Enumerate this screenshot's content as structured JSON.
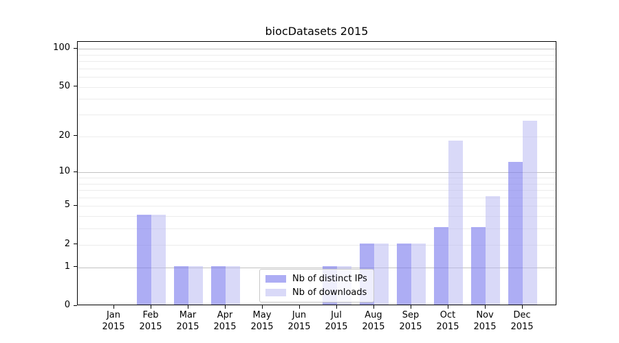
{
  "chart_data": {
    "type": "bar",
    "title": "biocDatasets 2015",
    "categories": [
      "Jan",
      "Feb",
      "Mar",
      "Apr",
      "May",
      "Jun",
      "Jul",
      "Aug",
      "Sep",
      "Oct",
      "Nov",
      "Dec"
    ],
    "category_year": "2015",
    "series": [
      {
        "name": "Nb of distinct IPs",
        "values": [
          0,
          4,
          1,
          1,
          0,
          0,
          1,
          2,
          2,
          3,
          3,
          12
        ],
        "fill": "rgba(122, 122, 238, 0.62)",
        "color_hex": "#acacf4"
      },
      {
        "name": "Nb of downloads",
        "values": [
          0,
          4,
          1,
          1,
          0,
          0,
          1,
          2,
          2,
          18,
          6,
          26
        ],
        "fill": "rgba(186, 186, 242, 0.55)",
        "color_hex": "#d9d9f6"
      }
    ],
    "yscale": "log1p",
    "ylim": [
      0,
      113.5
    ],
    "yticks": [
      0,
      1,
      2,
      5,
      10,
      20,
      50,
      100
    ],
    "major_gridlines": [
      1,
      10,
      100
    ],
    "minor_gridlines": [
      2,
      3,
      4,
      5,
      6,
      7,
      8,
      9,
      20,
      30,
      40,
      50,
      60,
      70,
      80,
      90
    ],
    "grid": true,
    "legend_position": "lower center",
    "colors": {
      "grid_major": "#c2c2c2",
      "grid_minor": "#ececec",
      "axis": "#000000",
      "text": "#000000"
    }
  }
}
